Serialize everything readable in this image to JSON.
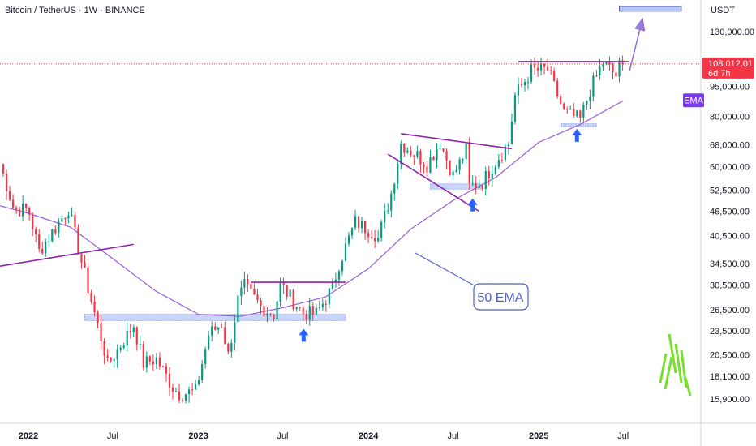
{
  "header": {
    "title": "Bitcoin / TetherUS · 1W · BINANCE",
    "currency": "USDT"
  },
  "price_tag": {
    "price": "108,012.01",
    "countdown": "6d 7h",
    "color": "#f23645"
  },
  "ema_tag": {
    "label": "EMA",
    "color": "#7e3af2"
  },
  "annotations": {
    "ema_callout": "50 EMA"
  },
  "colors": {
    "up": "#089981",
    "down": "#f23645",
    "ema": "#9b59d9",
    "trendline": "#8e24aa",
    "support_zone": "#3d6ae8",
    "arrow": "#2962ff"
  },
  "chart_data": {
    "type": "candlestick",
    "symbol": "Bitcoin / TetherUS",
    "interval": "1W",
    "exchange": "BINANCE",
    "quote": "USDT",
    "y_scale": "log",
    "y_range": [
      14500,
      150000
    ],
    "y_ticks": [
      "130,000.00",
      "95,000.00",
      "80,000.00",
      "68,000.00",
      "60,000.00",
      "52,500.00",
      "46,500.00",
      "40,500.00",
      "34,500.00",
      "30,500.00",
      "26,500.00",
      "23,500.00",
      "20,500.00",
      "18,100.00",
      "15,900.00"
    ],
    "y_tick_values": [
      130000,
      95000,
      80000,
      68000,
      60000,
      52500,
      46500,
      40500,
      34500,
      30500,
      26500,
      23500,
      20500,
      18100,
      15900
    ],
    "x_ticks": [
      "2022",
      "Jul",
      "2023",
      "Jul",
      "2024",
      "Jul",
      "2025",
      "Jul"
    ],
    "x_tick_dates": [
      "2022-01-01",
      "2022-07-01",
      "2023-01-01",
      "2023-07-01",
      "2024-01-01",
      "2024-07-01",
      "2025-01-01",
      "2025-07-01"
    ],
    "x_range": [
      "2021-11-01",
      "2025-12-15"
    ],
    "last_price": 108012.01,
    "close_anchors": [
      [
        "2021-11-01",
        61000
      ],
      [
        "2021-12-01",
        47000
      ],
      [
        "2022-01-01",
        47000
      ],
      [
        "2022-01-24",
        37000
      ],
      [
        "2022-03-28",
        47300
      ],
      [
        "2022-05-09",
        30000
      ],
      [
        "2022-06-13",
        21000
      ],
      [
        "2022-06-20",
        19300
      ],
      [
        "2022-08-15",
        24300
      ],
      [
        "2022-09-05",
        19500
      ],
      [
        "2022-10-03",
        20000
      ],
      [
        "2022-11-07",
        17000
      ],
      [
        "2022-11-21",
        16400
      ],
      [
        "2022-12-26",
        16600
      ],
      [
        "2023-01-23",
        23000
      ],
      [
        "2023-02-20",
        24500
      ],
      [
        "2023-03-06",
        20400
      ],
      [
        "2023-03-27",
        28000
      ],
      [
        "2023-04-10",
        30300
      ],
      [
        "2023-05-15",
        27000
      ],
      [
        "2023-06-12",
        25800
      ],
      [
        "2023-06-26",
        30500
      ],
      [
        "2023-08-14",
        26000
      ],
      [
        "2023-09-11",
        25900
      ],
      [
        "2023-10-16",
        30000
      ],
      [
        "2023-10-30",
        34500
      ],
      [
        "2023-12-04",
        43800
      ],
      [
        "2024-01-15",
        41000
      ],
      [
        "2024-01-22",
        39800
      ],
      [
        "2024-02-19",
        51500
      ],
      [
        "2024-03-11",
        68500
      ],
      [
        "2024-04-15",
        64000
      ],
      [
        "2024-05-06",
        60800
      ],
      [
        "2024-06-03",
        69000
      ],
      [
        "2024-07-01",
        57000
      ],
      [
        "2024-07-29",
        66000
      ],
      [
        "2024-08-05",
        53500
      ],
      [
        "2024-09-02",
        55000
      ],
      [
        "2024-10-07",
        63500
      ],
      [
        "2024-10-28",
        68500
      ],
      [
        "2024-11-11",
        90000
      ],
      [
        "2024-12-16",
        104000
      ],
      [
        "2025-01-20",
        104500
      ],
      [
        "2025-02-24",
        82000
      ],
      [
        "2025-03-31",
        78500
      ],
      [
        "2025-04-21",
        93000
      ],
      [
        "2025-05-19",
        109000
      ],
      [
        "2025-06-16",
        101000
      ],
      [
        "2025-06-23",
        106500
      ],
      [
        "2025-07-01",
        108012
      ]
    ],
    "ema": {
      "name": "50 EMA",
      "period": 50,
      "points": [
        [
          "2021-11-01",
          48000
        ],
        [
          "2022-01-01",
          46000
        ],
        [
          "2022-04-01",
          42500
        ],
        [
          "2022-07-01",
          35500
        ],
        [
          "2022-10-01",
          29500
        ],
        [
          "2023-01-01",
          25800
        ],
        [
          "2023-04-01",
          25500
        ],
        [
          "2023-07-01",
          26800
        ],
        [
          "2023-10-01",
          28500
        ],
        [
          "2024-01-01",
          33500
        ],
        [
          "2024-04-01",
          42000
        ],
        [
          "2024-07-01",
          49500
        ],
        [
          "2024-10-01",
          56500
        ],
        [
          "2025-01-01",
          69000
        ],
        [
          "2025-04-01",
          76500
        ],
        [
          "2025-07-01",
          87500
        ]
      ]
    },
    "trendlines": [
      {
        "from": [
          "2021-11-01",
          34000
        ],
        "to": [
          "2022-08-15",
          38500
        ]
      },
      {
        "from": [
          "2023-04-24",
          31000
        ],
        "to": [
          "2023-11-13",
          31000
        ]
      },
      {
        "from": [
          "2024-03-11",
          72500
        ],
        "to": [
          "2024-11-04",
          66500
        ]
      },
      {
        "from": [
          "2024-02-12",
          64500
        ],
        "to": [
          "2024-08-26",
          46500
        ]
      },
      {
        "from": [
          "2024-11-18",
          109500
        ],
        "to": [
          "2025-07-15",
          109500
        ]
      }
    ],
    "zones": [
      {
        "from": "2022-05-02",
        "to": "2023-11-13",
        "low": 24900,
        "high": 25800
      },
      {
        "from": "2024-05-13",
        "to": "2024-09-02",
        "low": 52800,
        "high": 54400
      },
      {
        "from": "2025-02-17",
        "to": "2025-05-05",
        "low": 75500,
        "high": 76700
      }
    ],
    "target_box": {
      "from": "2025-06-23",
      "to": "2025-11-03",
      "low": 146000,
      "high": 150000
    },
    "arrows": [
      {
        "kind": "up",
        "at": [
          "2023-08-15",
          22800
        ]
      },
      {
        "kind": "up",
        "at": [
          "2024-08-12",
          48000
        ]
      },
      {
        "kind": "up",
        "at": [
          "2025-03-24",
          71500
        ]
      },
      {
        "kind": "projection",
        "from": [
          "2025-07-15",
          104000
        ],
        "to": [
          "2025-08-12",
          140000
        ]
      }
    ]
  }
}
